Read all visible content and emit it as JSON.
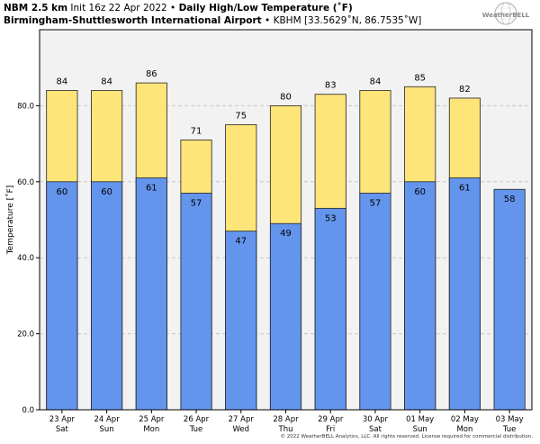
{
  "header": {
    "model": "NBM 2.5 km",
    "init": "Init 16z 22 Apr 2022",
    "sep": "•",
    "product": "Daily High/Low Temperature (˚F)",
    "station_name": "Birmingham-Shuttlesworth International Airport",
    "station_info": "KBHM [33.5629˚N, 86.7535˚W]"
  },
  "logo": {
    "text": "WeatherBELL",
    "icon": "globe-logo-icon"
  },
  "copyright": "© 2022 WeatherBELL Analytics, LLC. All rights reserved. License required for commercial distribution.",
  "colors": {
    "high": "#fde57a",
    "low": "#6495ed",
    "plot_bg": "#f2f2f2",
    "grid": "#c8c8c8"
  },
  "chart_data": {
    "type": "bar",
    "ylabel": "Temperature [˚F]",
    "ylim": [
      0,
      100
    ],
    "yticks": [
      0,
      20,
      40,
      60,
      80
    ],
    "ytick_labels": [
      "0.0",
      "20.0",
      "40.0",
      "60.0",
      "80.0"
    ],
    "grid": true,
    "categories": [
      {
        "date": "23 Apr",
        "day": "Sat"
      },
      {
        "date": "24 Apr",
        "day": "Sun"
      },
      {
        "date": "25 Apr",
        "day": "Mon"
      },
      {
        "date": "26 Apr",
        "day": "Tue"
      },
      {
        "date": "27 Apr",
        "day": "Wed"
      },
      {
        "date": "28 Apr",
        "day": "Thu"
      },
      {
        "date": "29 Apr",
        "day": "Fri"
      },
      {
        "date": "30 Apr",
        "day": "Sat"
      },
      {
        "date": "01 May",
        "day": "Sun"
      },
      {
        "date": "02 May",
        "day": "Mon"
      },
      {
        "date": "03 May",
        "day": "Tue"
      }
    ],
    "series": [
      {
        "values": [
          84,
          84,
          86,
          71,
          75,
          80,
          83,
          84,
          85,
          82,
          null
        ]
      },
      {
        "values": [
          60,
          60,
          61,
          57,
          47,
          49,
          53,
          57,
          60,
          61,
          58
        ]
      }
    ]
  }
}
